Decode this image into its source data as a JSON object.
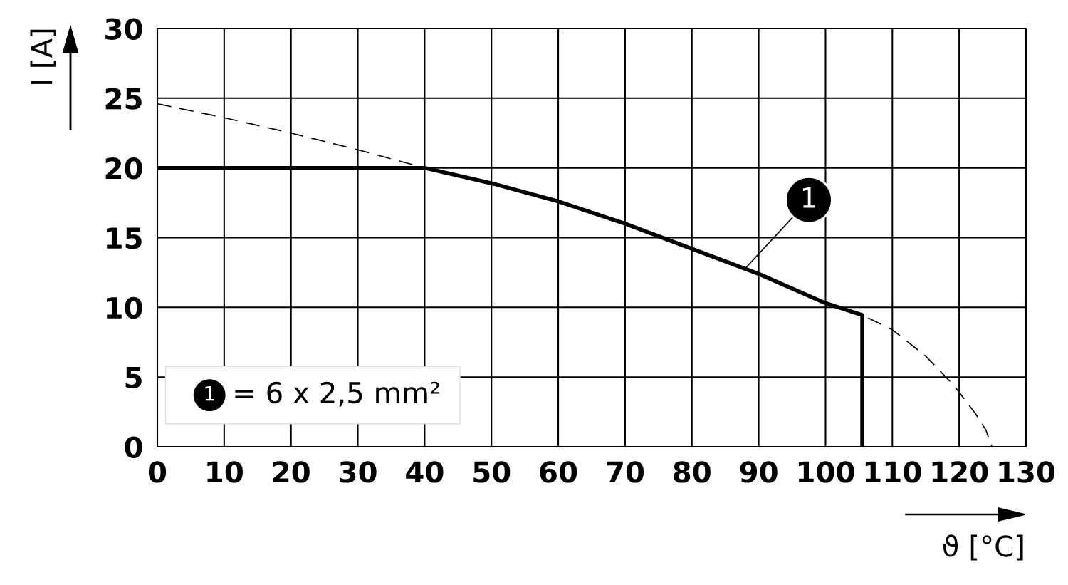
{
  "chart_data": {
    "type": "line",
    "xlabel": "ϑ [°C]",
    "ylabel": "I [A]",
    "xlim": [
      0,
      130
    ],
    "xticks": [
      0,
      10,
      20,
      30,
      40,
      50,
      60,
      70,
      80,
      90,
      100,
      110,
      120,
      130
    ],
    "ylim": [
      0,
      30
    ],
    "yticks": [
      0,
      5,
      10,
      15,
      20,
      25,
      30
    ],
    "grid": true,
    "marker": "none",
    "series": [
      {
        "color": "#000000",
        "line_style": "dashed",
        "x": [
          0,
          10,
          20,
          30,
          40,
          50,
          60,
          70,
          80,
          90,
          100,
          105.5,
          110,
          115,
          119.2,
          122.4,
          124,
          124.9
        ],
        "values": [
          24.6,
          23.6,
          22.5,
          21.3,
          20,
          18.9,
          17.6,
          16.0,
          14.2,
          12.4,
          10.3,
          9.45,
          8.4,
          6.5,
          4.4,
          2.4,
          1.2,
          0
        ]
      },
      {
        "color": "#000000",
        "line_style": "solid",
        "x": [
          0,
          10,
          20,
          30,
          40,
          50,
          60,
          70,
          80,
          90,
          100,
          105.5,
          105.5
        ],
        "values": [
          20,
          20,
          20,
          20,
          20,
          18.9,
          17.6,
          16.0,
          14.2,
          12.4,
          10.3,
          9.45,
          0
        ]
      }
    ],
    "annotations": [
      {
        "text": "1",
        "x": 88,
        "y": 12.8
      },
      "1 = 6 x 2,5 mm²"
    ]
  }
}
